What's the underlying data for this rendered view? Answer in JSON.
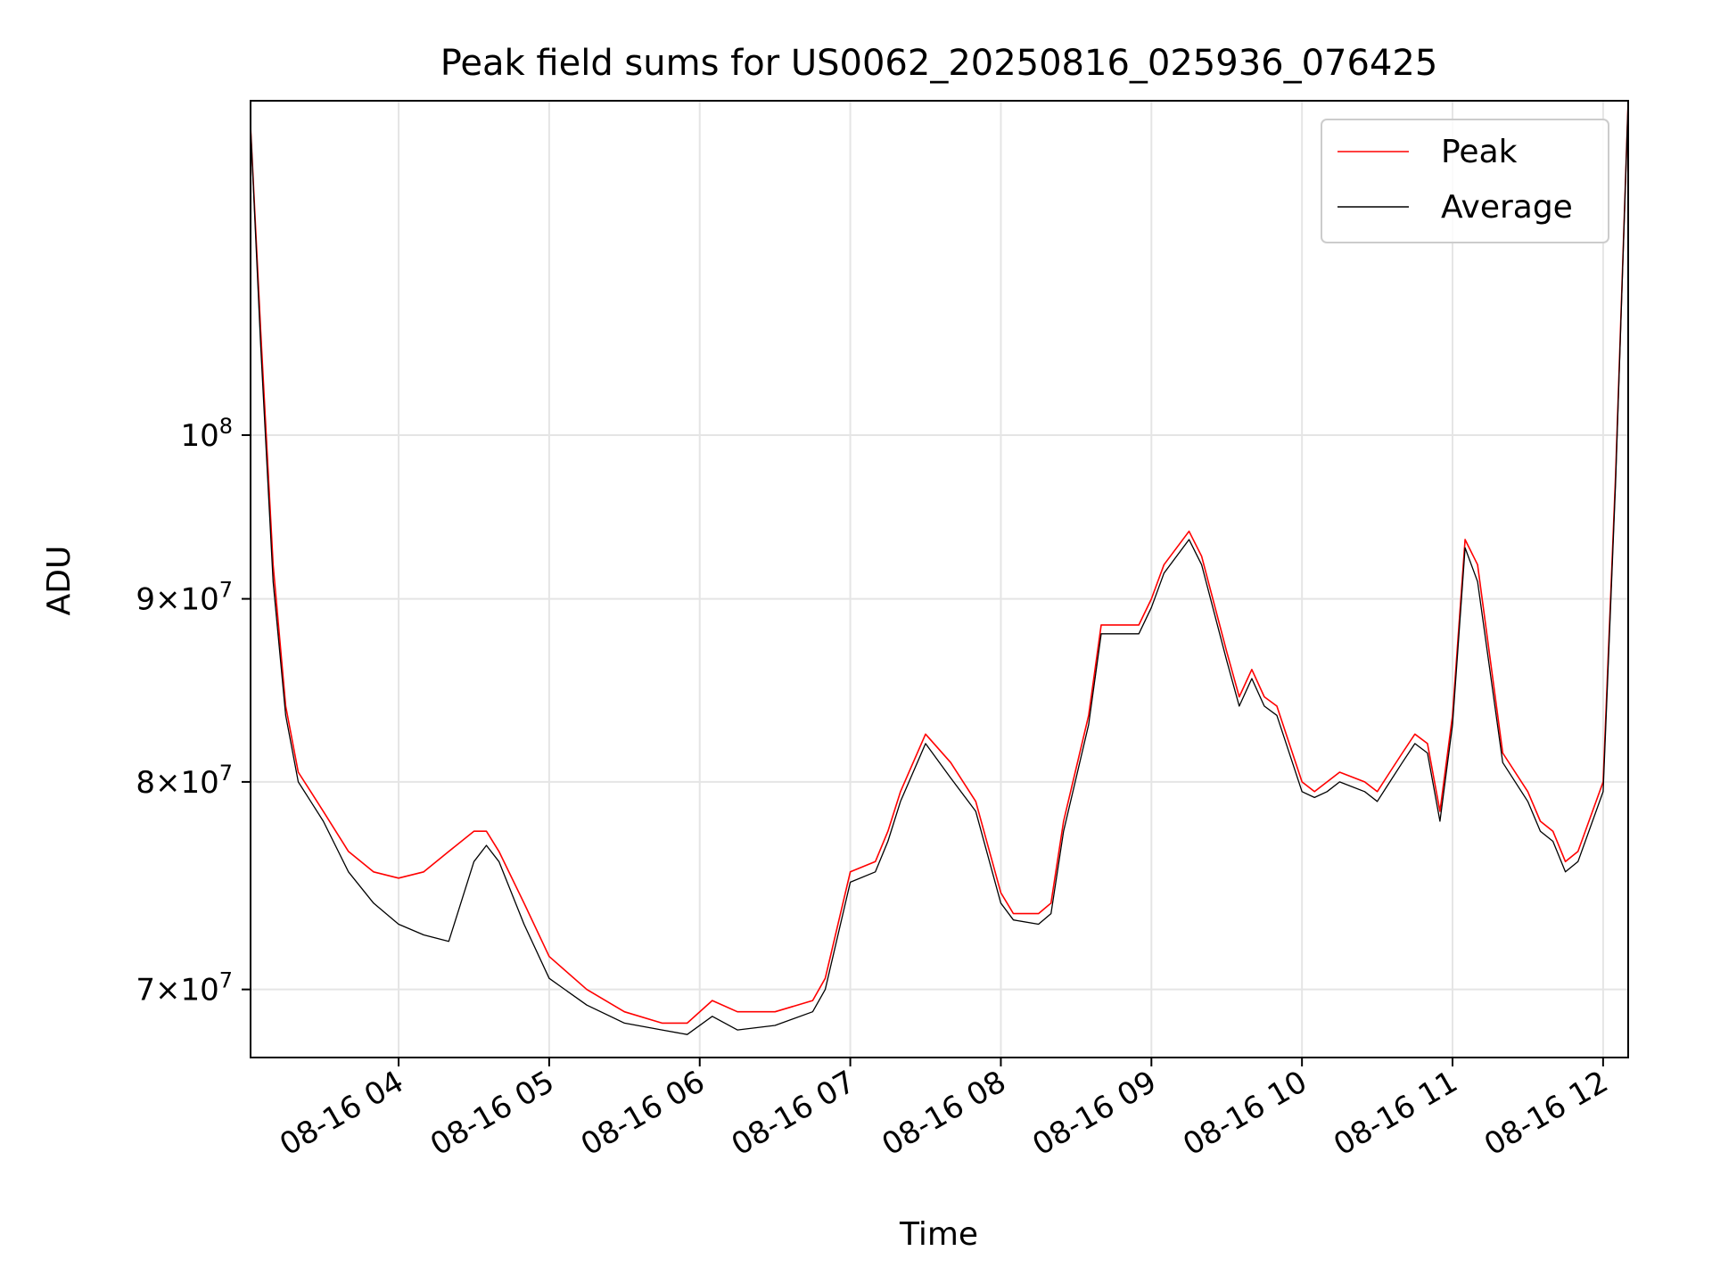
{
  "chart_data": {
    "type": "line",
    "title": "Peak field sums for US0062_20250816_025936_076425",
    "xlabel": "Time",
    "ylabel": "ADU",
    "x_axis": {
      "type": "time",
      "range": [
        "08-16 03:01",
        "08-16 12:10"
      ],
      "ticks": [
        "08-16 04",
        "08-16 05",
        "08-16 06",
        "08-16 07",
        "08-16 08",
        "08-16 09",
        "08-16 10",
        "08-16 11",
        "08-16 12"
      ]
    },
    "y_axis": {
      "scale": "log",
      "range": [
        67000000,
        124000000
      ],
      "ticks": [
        {
          "value": 70000000,
          "mantissa": "7",
          "base": "10",
          "exp": "7"
        },
        {
          "value": 80000000,
          "mantissa": "8",
          "base": "10",
          "exp": "7"
        },
        {
          "value": 90000000,
          "mantissa": "9",
          "base": "10",
          "exp": "7"
        },
        {
          "value": 100000000,
          "mantissa": "",
          "base": "10",
          "exp": "8"
        }
      ]
    },
    "grid": true,
    "legend_position": "top-right",
    "colors": {
      "peak": "#ff0000",
      "average": "#000000",
      "grid": "#e5e5e5"
    },
    "series": [
      {
        "name": "Peak",
        "color": "#ff0000",
        "x": [
          "08-16 03:01",
          "08-16 03:05",
          "08-16 03:10",
          "08-16 03:15",
          "08-16 03:20",
          "08-16 03:25",
          "08-16 03:30",
          "08-16 03:40",
          "08-16 03:50",
          "08-16 04:00",
          "08-16 04:10",
          "08-16 04:20",
          "08-16 04:30",
          "08-16 04:35",
          "08-16 04:40",
          "08-16 04:50",
          "08-16 05:00",
          "08-16 05:15",
          "08-16 05:30",
          "08-16 05:45",
          "08-16 05:55",
          "08-16 06:05",
          "08-16 06:15",
          "08-16 06:30",
          "08-16 06:45",
          "08-16 06:50",
          "08-16 07:00",
          "08-16 07:10",
          "08-16 07:15",
          "08-16 07:20",
          "08-16 07:30",
          "08-16 07:40",
          "08-16 07:50",
          "08-16 08:00",
          "08-16 08:05",
          "08-16 08:15",
          "08-16 08:20",
          "08-16 08:25",
          "08-16 08:35",
          "08-16 08:40",
          "08-16 08:45",
          "08-16 08:55",
          "08-16 09:00",
          "08-16 09:05",
          "08-16 09:15",
          "08-16 09:20",
          "08-16 09:30",
          "08-16 09:35",
          "08-16 09:40",
          "08-16 09:45",
          "08-16 09:50",
          "08-16 10:00",
          "08-16 10:05",
          "08-16 10:10",
          "08-16 10:15",
          "08-16 10:25",
          "08-16 10:30",
          "08-16 10:35",
          "08-16 10:40",
          "08-16 10:45",
          "08-16 10:50",
          "08-16 10:55",
          "08-16 11:00",
          "08-16 11:05",
          "08-16 11:10",
          "08-16 11:20",
          "08-16 11:30",
          "08-16 11:35",
          "08-16 11:40",
          "08-16 11:45",
          "08-16 11:50",
          "08-16 12:00",
          "08-16 12:05",
          "08-16 12:10"
        ],
        "y": [
          122000000,
          107000000,
          92000000,
          84000000,
          80500000,
          79500000,
          78500000,
          76500000,
          75500000,
          75200000,
          75500000,
          76500000,
          77500000,
          77500000,
          76500000,
          74000000,
          71500000,
          70000000,
          69000000,
          68500000,
          68500000,
          69500000,
          69000000,
          69000000,
          69500000,
          70500000,
          75500000,
          76000000,
          77500000,
          79500000,
          82500000,
          81000000,
          79000000,
          74500000,
          73500000,
          73500000,
          74000000,
          78000000,
          83500000,
          88500000,
          88500000,
          88500000,
          90000000,
          92000000,
          94000000,
          92500000,
          87000000,
          84500000,
          86000000,
          84500000,
          84000000,
          80000000,
          79500000,
          80000000,
          80500000,
          80000000,
          79500000,
          80500000,
          81500000,
          82500000,
          82000000,
          78500000,
          83500000,
          93500000,
          92000000,
          81500000,
          79500000,
          78000000,
          77500000,
          76000000,
          76500000,
          80000000,
          97500000,
          124000000
        ]
      },
      {
        "name": "Average",
        "color": "#000000",
        "x": [
          "08-16 03:01",
          "08-16 03:05",
          "08-16 03:10",
          "08-16 03:15",
          "08-16 03:20",
          "08-16 03:25",
          "08-16 03:30",
          "08-16 03:40",
          "08-16 03:50",
          "08-16 04:00",
          "08-16 04:10",
          "08-16 04:20",
          "08-16 04:30",
          "08-16 04:35",
          "08-16 04:40",
          "08-16 04:50",
          "08-16 05:00",
          "08-16 05:15",
          "08-16 05:30",
          "08-16 05:45",
          "08-16 05:55",
          "08-16 06:05",
          "08-16 06:15",
          "08-16 06:30",
          "08-16 06:45",
          "08-16 06:50",
          "08-16 07:00",
          "08-16 07:10",
          "08-16 07:15",
          "08-16 07:20",
          "08-16 07:30",
          "08-16 07:40",
          "08-16 07:50",
          "08-16 08:00",
          "08-16 08:05",
          "08-16 08:15",
          "08-16 08:20",
          "08-16 08:25",
          "08-16 08:35",
          "08-16 08:40",
          "08-16 08:45",
          "08-16 08:55",
          "08-16 09:00",
          "08-16 09:05",
          "08-16 09:15",
          "08-16 09:20",
          "08-16 09:30",
          "08-16 09:35",
          "08-16 09:40",
          "08-16 09:45",
          "08-16 09:50",
          "08-16 10:00",
          "08-16 10:05",
          "08-16 10:10",
          "08-16 10:15",
          "08-16 10:25",
          "08-16 10:30",
          "08-16 10:35",
          "08-16 10:40",
          "08-16 10:45",
          "08-16 10:50",
          "08-16 10:55",
          "08-16 11:00",
          "08-16 11:05",
          "08-16 11:10",
          "08-16 11:20",
          "08-16 11:30",
          "08-16 11:35",
          "08-16 11:40",
          "08-16 11:45",
          "08-16 11:50",
          "08-16 12:00",
          "08-16 12:05",
          "08-16 12:10"
        ],
        "y": [
          122000000,
          106000000,
          91000000,
          83500000,
          80000000,
          79000000,
          78000000,
          75500000,
          74000000,
          73000000,
          72500000,
          72200000,
          76000000,
          76800000,
          76000000,
          73000000,
          70500000,
          69300000,
          68500000,
          68200000,
          68000000,
          68800000,
          68200000,
          68400000,
          69000000,
          70000000,
          75000000,
          75500000,
          77000000,
          79000000,
          82000000,
          80200000,
          78500000,
          74000000,
          73200000,
          73000000,
          73500000,
          77500000,
          83000000,
          88000000,
          88000000,
          88000000,
          89500000,
          91500000,
          93500000,
          92000000,
          86500000,
          84000000,
          85500000,
          84000000,
          83500000,
          79500000,
          79200000,
          79500000,
          80000000,
          79500000,
          79000000,
          80000000,
          81000000,
          82000000,
          81500000,
          78000000,
          83000000,
          93000000,
          91000000,
          81000000,
          79000000,
          77500000,
          77000000,
          75500000,
          76000000,
          79500000,
          97000000,
          124000000
        ]
      }
    ]
  }
}
